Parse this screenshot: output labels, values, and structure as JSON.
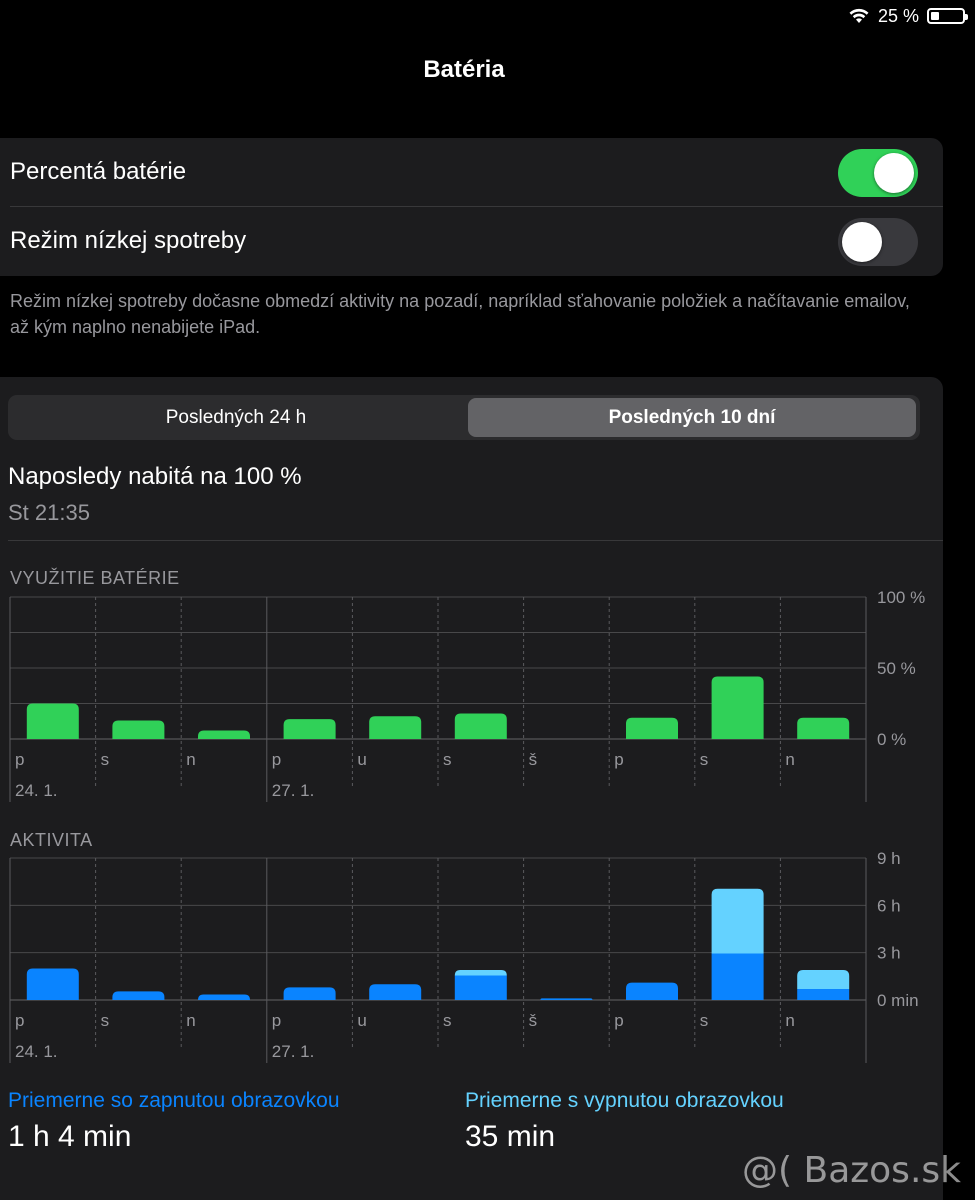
{
  "status_bar": {
    "battery_text": "25 %",
    "battery_level": 0.25,
    "wifi_icon": "wifi-icon"
  },
  "nav": {
    "title": "Batéria"
  },
  "settings": [
    {
      "label": "Percentá batérie",
      "on": true
    },
    {
      "label": "Režim nízkej spotreby",
      "on": false
    }
  ],
  "footnote": "Režim nízkej spotreby dočasne obmedzí aktivity na pozadí, napríklad sťahovanie položiek a načítavanie emailov, až kým naplno nenabijete iPad.",
  "tabs": [
    {
      "label": "Posledných 24 h",
      "selected": false
    },
    {
      "label": "Posledných 10 dní",
      "selected": true
    }
  ],
  "last_charged": {
    "title": "Naposledy nabitá na 100 %",
    "time": "St 21:35"
  },
  "chart_data": [
    {
      "type": "bar",
      "title": "VYUŽITIE BATÉRIE",
      "categories": [
        "p",
        "s",
        "n",
        "p",
        "u",
        "s",
        "š",
        "p",
        "s",
        "n"
      ],
      "date_labels": [
        {
          "label": "24. 1.",
          "index": 0
        },
        {
          "label": "27. 1.",
          "index": 3
        }
      ],
      "y_ticks": [
        "100 %",
        "50 %",
        "0 %"
      ],
      "ylim": [
        0,
        100
      ],
      "values": [
        25,
        13,
        6,
        14,
        16,
        18,
        0,
        15,
        44,
        15
      ],
      "color": "#30d158"
    },
    {
      "type": "bar",
      "stacked": true,
      "title": "AKTIVITA",
      "categories": [
        "p",
        "s",
        "n",
        "p",
        "u",
        "s",
        "š",
        "p",
        "s",
        "n"
      ],
      "date_labels": [
        {
          "label": "24. 1.",
          "index": 0
        },
        {
          "label": "27. 1.",
          "index": 3
        }
      ],
      "y_ticks": [
        "9 h",
        "6 h",
        "3 h",
        "0 min"
      ],
      "ylim": [
        0,
        9
      ],
      "series": [
        {
          "values": [
            2.0,
            0.55,
            0.35,
            0.8,
            1.0,
            1.55,
            0.1,
            1.1,
            2.95,
            0.7
          ],
          "color": "#0a84ff"
        },
        {
          "values": [
            0.0,
            0.0,
            0.0,
            0.0,
            0.0,
            0.35,
            0.0,
            0.0,
            4.1,
            1.2
          ],
          "color": "#64d2ff"
        }
      ]
    }
  ],
  "averages": [
    {
      "label": "Priemerne so zapnutou obrazovkou",
      "value": "1 h 4 min",
      "color": "#0a84ff"
    },
    {
      "label": "Priemerne s vypnutou obrazovkou",
      "value": "35 min",
      "color": "#64d2ff"
    }
  ],
  "watermark": "@( Bazos.sk"
}
